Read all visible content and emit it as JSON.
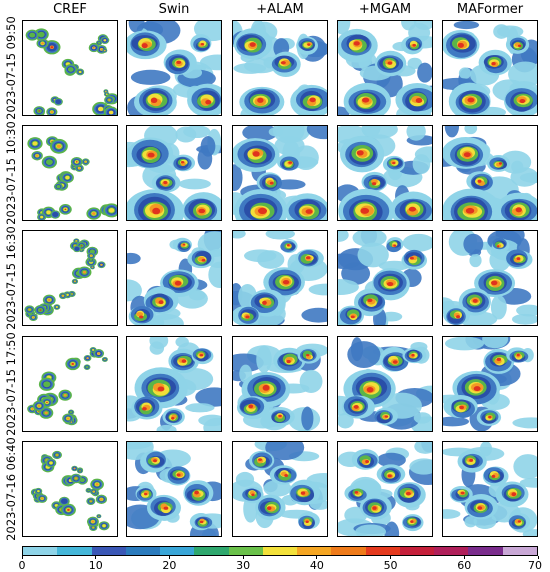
{
  "columns": [
    "CREF",
    "Swin",
    "+ALAM",
    "+MGAM",
    "MAFormer"
  ],
  "rows": [
    "2023-07-15 09:50",
    "2023-07-15 10:30",
    "2023-07-15 16:30",
    "2023-07-15 17:50",
    "2023-07-16 06:40"
  ],
  "colorbar": {
    "ticks": [
      "0",
      "10",
      "20",
      "30",
      "40",
      "50",
      "60",
      "70"
    ],
    "colors": [
      "#8fd4e8",
      "#45b7d9",
      "#3a57b6",
      "#2b7bbd",
      "#39a6d8",
      "#2fa86e",
      "#6ac14a",
      "#f3e13b",
      "#f5a623",
      "#ef7b1a",
      "#e53a1e",
      "#c51f3a",
      "#b01f5a",
      "#7a2c8c",
      "#c9a8d6"
    ]
  },
  "panels_legend": {
    "light": "#8fd4e8",
    "blue": "#3f79c2",
    "dark": "#2a4fa8",
    "green": "#5bb548",
    "yellow": "#f1de3a",
    "orange": "#f39a25",
    "red": "#e0331e"
  }
}
